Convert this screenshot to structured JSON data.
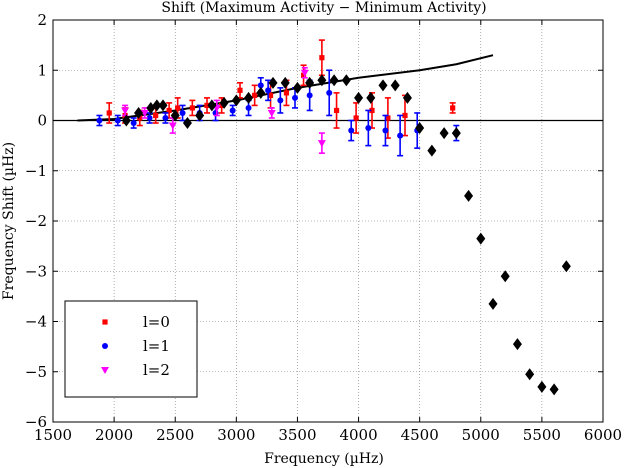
{
  "chart_data": {
    "type": "scatter",
    "title": "Shift (Maximum Activity − Minimum Activity)",
    "xlabel": "Frequency (µHz)",
    "ylabel": "Frequency Shift (µHz)",
    "xlim": [
      1500,
      6000
    ],
    "ylim": [
      -6,
      2
    ],
    "xticks": [
      1500,
      2000,
      2500,
      3000,
      3500,
      4000,
      4500,
      5000,
      5500,
      6000
    ],
    "yticks": [
      -6,
      -5,
      -4,
      -3,
      -2,
      -1,
      0,
      1,
      2
    ],
    "grid": true,
    "legend_position": "lower-left",
    "colors": {
      "l0": "#ff0000",
      "l1": "#0000ff",
      "l2": "#ff00ff",
      "black": "#000000"
    },
    "legend": [
      {
        "label": "l=0",
        "marker": "square",
        "color": "#ff0000"
      },
      {
        "label": "l=1",
        "marker": "circle",
        "color": "#0000ff"
      },
      {
        "label": "l=2",
        "marker": "triangle-down",
        "color": "#ff00ff"
      }
    ],
    "series": [
      {
        "name": "l=0",
        "marker": "square",
        "color": "#ff0000",
        "points": [
          {
            "x": 1960,
            "y": 0.15,
            "err": 0.2
          },
          {
            "x": 2090,
            "y": 0.1,
            "err": 0.15
          },
          {
            "x": 2210,
            "y": 0.05,
            "err": 0.15
          },
          {
            "x": 2340,
            "y": 0.1,
            "err": 0.15
          },
          {
            "x": 2450,
            "y": 0.2,
            "err": 0.15
          },
          {
            "x": 2520,
            "y": 0.25,
            "err": 0.2
          },
          {
            "x": 2640,
            "y": 0.25,
            "err": 0.15
          },
          {
            "x": 2760,
            "y": 0.3,
            "err": 0.15
          },
          {
            "x": 2880,
            "y": 0.3,
            "err": 0.15
          },
          {
            "x": 3030,
            "y": 0.6,
            "err": 0.15
          },
          {
            "x": 3150,
            "y": 0.5,
            "err": 0.2
          },
          {
            "x": 3280,
            "y": 0.5,
            "err": 0.25
          },
          {
            "x": 3410,
            "y": 0.55,
            "err": 0.25
          },
          {
            "x": 3550,
            "y": 0.9,
            "err": 0.2
          },
          {
            "x": 3700,
            "y": 1.25,
            "err": 0.35
          },
          {
            "x": 3820,
            "y": 0.2,
            "err": 0.35
          },
          {
            "x": 3980,
            "y": 0.05,
            "err": 0.3
          },
          {
            "x": 4110,
            "y": 0.2,
            "err": 0.35
          },
          {
            "x": 4240,
            "y": 0.05,
            "err": 0.4
          },
          {
            "x": 4380,
            "y": 0.1,
            "err": 0.4
          },
          {
            "x": 4770,
            "y": 0.25,
            "err": 0.1
          }
        ]
      },
      {
        "name": "l=1",
        "marker": "circle",
        "color": "#0000ff",
        "points": [
          {
            "x": 1880,
            "y": 0.0,
            "err": 0.1
          },
          {
            "x": 2030,
            "y": 0.0,
            "err": 0.1
          },
          {
            "x": 2160,
            "y": -0.05,
            "err": 0.1
          },
          {
            "x": 2290,
            "y": 0.05,
            "err": 0.1
          },
          {
            "x": 2420,
            "y": 0.05,
            "err": 0.1
          },
          {
            "x": 2560,
            "y": 0.15,
            "err": 0.15
          },
          {
            "x": 2700,
            "y": 0.15,
            "err": 0.15
          },
          {
            "x": 2830,
            "y": 0.15,
            "err": 0.15
          },
          {
            "x": 2970,
            "y": 0.2,
            "err": 0.1
          },
          {
            "x": 3100,
            "y": 0.25,
            "err": 0.15
          },
          {
            "x": 3200,
            "y": 0.7,
            "err": 0.15
          },
          {
            "x": 3260,
            "y": 0.6,
            "err": 0.2
          },
          {
            "x": 3360,
            "y": 0.4,
            "err": 0.25
          },
          {
            "x": 3480,
            "y": 0.45,
            "err": 0.2
          },
          {
            "x": 3600,
            "y": 0.5,
            "err": 0.3
          },
          {
            "x": 3760,
            "y": 0.55,
            "err": 0.45
          },
          {
            "x": 3940,
            "y": -0.2,
            "err": 0.2
          },
          {
            "x": 4080,
            "y": -0.15,
            "err": 0.35
          },
          {
            "x": 4220,
            "y": -0.2,
            "err": 0.3
          },
          {
            "x": 4340,
            "y": -0.3,
            "err": 0.4
          },
          {
            "x": 4480,
            "y": -0.2,
            "err": 0.35
          },
          {
            "x": 4800,
            "y": -0.25,
            "err": 0.15
          }
        ]
      },
      {
        "name": "l=2",
        "marker": "triangle-down",
        "color": "#ff00ff",
        "points": [
          {
            "x": 2090,
            "y": 0.2,
            "err": 0.1
          },
          {
            "x": 2250,
            "y": 0.15,
            "err": 0.1
          },
          {
            "x": 2480,
            "y": -0.1,
            "err": 0.15
          },
          {
            "x": 2840,
            "y": 0.25,
            "err": 0.15
          },
          {
            "x": 3290,
            "y": 0.15,
            "err": 0.1
          },
          {
            "x": 3560,
            "y": 0.95,
            "err": 0.1
          },
          {
            "x": 3700,
            "y": -0.45,
            "err": 0.2
          }
        ]
      },
      {
        "marker": "diamond",
        "color": "#000000",
        "points": [
          {
            "x": 2100,
            "y": 0.0
          },
          {
            "x": 2200,
            "y": 0.15
          },
          {
            "x": 2300,
            "y": 0.25
          },
          {
            "x": 2350,
            "y": 0.3
          },
          {
            "x": 2400,
            "y": 0.3
          },
          {
            "x": 2500,
            "y": 0.1
          },
          {
            "x": 2600,
            "y": -0.05
          },
          {
            "x": 2700,
            "y": 0.1
          },
          {
            "x": 2800,
            "y": 0.3
          },
          {
            "x": 2900,
            "y": 0.35
          },
          {
            "x": 3000,
            "y": 0.4
          },
          {
            "x": 3100,
            "y": 0.45
          },
          {
            "x": 3200,
            "y": 0.55
          },
          {
            "x": 3300,
            "y": 0.75
          },
          {
            "x": 3400,
            "y": 0.75
          },
          {
            "x": 3500,
            "y": 0.65
          },
          {
            "x": 3600,
            "y": 0.75
          },
          {
            "x": 3700,
            "y": 0.8
          },
          {
            "x": 3800,
            "y": 0.8
          },
          {
            "x": 3900,
            "y": 0.8
          },
          {
            "x": 4000,
            "y": 0.45
          },
          {
            "x": 4100,
            "y": 0.45
          },
          {
            "x": 4200,
            "y": 0.7
          },
          {
            "x": 4300,
            "y": 0.7
          },
          {
            "x": 4400,
            "y": 0.45
          },
          {
            "x": 4500,
            "y": -0.15
          },
          {
            "x": 4600,
            "y": -0.6
          },
          {
            "x": 4700,
            "y": -0.25
          },
          {
            "x": 4800,
            "y": -0.25
          },
          {
            "x": 4900,
            "y": -1.5
          },
          {
            "x": 5000,
            "y": -2.35
          },
          {
            "x": 5100,
            "y": -3.65
          },
          {
            "x": 5200,
            "y": -3.1
          },
          {
            "x": 5300,
            "y": -4.45
          },
          {
            "x": 5400,
            "y": -5.05
          },
          {
            "x": 5500,
            "y": -5.3
          },
          {
            "x": 5600,
            "y": -5.35
          },
          {
            "x": 5700,
            "y": -2.9
          }
        ]
      },
      {
        "marker": "line",
        "color": "#000000",
        "points": [
          {
            "x": 1700,
            "y": 0.0
          },
          {
            "x": 2000,
            "y": 0.03
          },
          {
            "x": 2500,
            "y": 0.2
          },
          {
            "x": 3000,
            "y": 0.4
          },
          {
            "x": 3500,
            "y": 0.65
          },
          {
            "x": 4000,
            "y": 0.85
          },
          {
            "x": 4500,
            "y": 1.0
          },
          {
            "x": 4800,
            "y": 1.12
          },
          {
            "x": 5100,
            "y": 1.3
          }
        ]
      }
    ]
  }
}
